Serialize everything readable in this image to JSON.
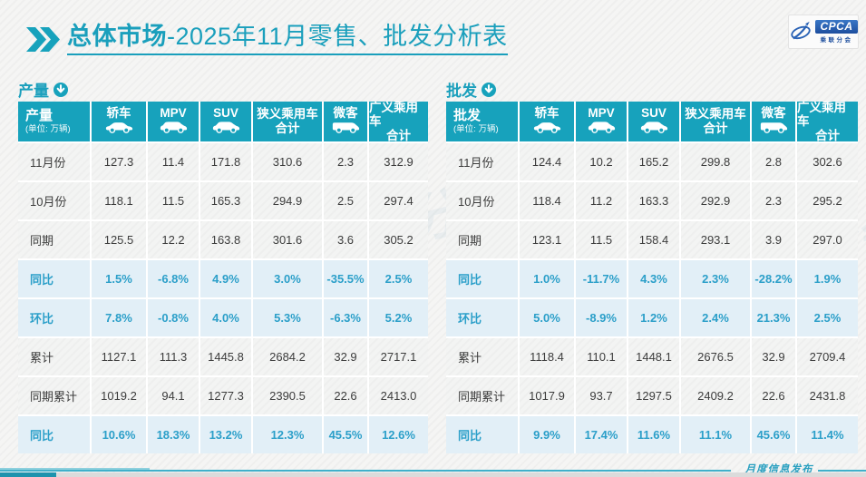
{
  "title": {
    "bold": "总体市场",
    "rest": "-2025年11月零售、批发分析表"
  },
  "logo": {
    "name": "CPCA",
    "sub": "乘联分会"
  },
  "columns": [
    {
      "label": "轿车",
      "icon": "sedan-icon"
    },
    {
      "label": "MPV",
      "icon": "mpv-icon"
    },
    {
      "label": "SUV",
      "icon": "suv-icon"
    },
    {
      "label": "狭义乘用车",
      "label2": "合计",
      "icon": null
    },
    {
      "label": "微客",
      "icon": "van-icon"
    },
    {
      "label": "广义乘用车",
      "label2": "合计",
      "icon": null
    }
  ],
  "production": {
    "label": "产量",
    "unit": "(单位: 万辆)",
    "rows": [
      {
        "label": "11月份",
        "type": "normal",
        "values": [
          "127.3",
          "11.4",
          "171.8",
          "310.6",
          "2.3",
          "312.9"
        ]
      },
      {
        "label": "10月份",
        "type": "normal",
        "values": [
          "118.1",
          "11.5",
          "165.3",
          "294.9",
          "2.5",
          "297.4"
        ]
      },
      {
        "label": "同期",
        "type": "normal",
        "values": [
          "125.5",
          "12.2",
          "163.8",
          "301.6",
          "3.6",
          "305.2"
        ]
      },
      {
        "label": "同比",
        "type": "highlight",
        "values": [
          "1.5%",
          "-6.8%",
          "4.9%",
          "3.0%",
          "-35.5%",
          "2.5%"
        ]
      },
      {
        "label": "环比",
        "type": "highlight",
        "values": [
          "7.8%",
          "-0.8%",
          "4.0%",
          "5.3%",
          "-6.3%",
          "5.2%"
        ]
      },
      {
        "label": "累计",
        "type": "normal",
        "values": [
          "1127.1",
          "111.3",
          "1445.8",
          "2684.2",
          "32.9",
          "2717.1"
        ]
      },
      {
        "label": "同期累计",
        "type": "normal",
        "values": [
          "1019.2",
          "94.1",
          "1277.3",
          "2390.5",
          "22.6",
          "2413.0"
        ]
      },
      {
        "label": "同比",
        "type": "highlight",
        "values": [
          "10.6%",
          "18.3%",
          "13.2%",
          "12.3%",
          "45.5%",
          "12.6%"
        ]
      }
    ]
  },
  "wholesale": {
    "label": "批发",
    "unit": "(单位: 万辆)",
    "rows": [
      {
        "label": "11月份",
        "type": "normal",
        "values": [
          "124.4",
          "10.2",
          "165.2",
          "299.8",
          "2.8",
          "302.6"
        ]
      },
      {
        "label": "10月份",
        "type": "normal",
        "values": [
          "118.4",
          "11.2",
          "163.3",
          "292.9",
          "2.3",
          "295.2"
        ]
      },
      {
        "label": "同期",
        "type": "normal",
        "values": [
          "123.1",
          "11.5",
          "158.4",
          "293.1",
          "3.9",
          "297.0"
        ]
      },
      {
        "label": "同比",
        "type": "highlight",
        "values": [
          "1.0%",
          "-11.7%",
          "4.3%",
          "2.3%",
          "-28.2%",
          "1.9%"
        ]
      },
      {
        "label": "环比",
        "type": "highlight",
        "values": [
          "5.0%",
          "-8.9%",
          "1.2%",
          "2.4%",
          "21.3%",
          "2.5%"
        ]
      },
      {
        "label": "累计",
        "type": "normal",
        "values": [
          "1118.4",
          "110.1",
          "1448.1",
          "2676.5",
          "32.9",
          "2709.4"
        ]
      },
      {
        "label": "同期累计",
        "type": "normal",
        "values": [
          "1017.9",
          "93.7",
          "1297.5",
          "2409.2",
          "22.6",
          "2431.8"
        ]
      },
      {
        "label": "同比",
        "type": "highlight",
        "values": [
          "9.9%",
          "17.4%",
          "11.6%",
          "11.1%",
          "45.6%",
          "11.4%"
        ]
      }
    ]
  },
  "footer": {
    "text": "月度信息发布"
  },
  "watermark": {
    "text": "乘联分会"
  },
  "colors": {
    "teal": "#17a2bc",
    "title_teal": "#1a9fbc",
    "accent_text": "#2b9fc9",
    "highlight_bg": "#e2eff7",
    "footer_line": "#3fb0ca",
    "logo_blue": "#1d4e9e"
  }
}
